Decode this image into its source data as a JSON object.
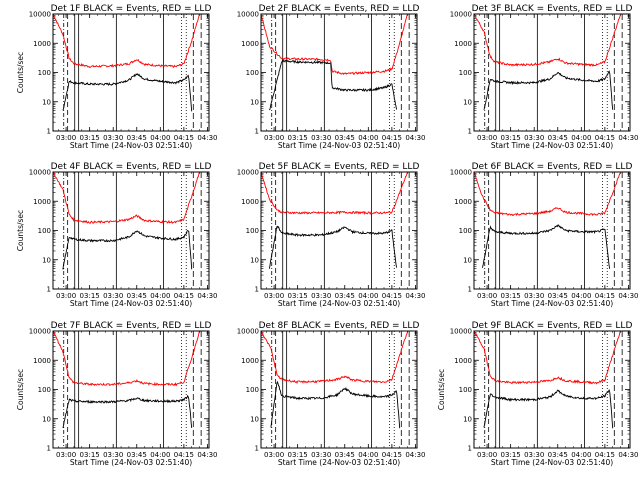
{
  "chart_data": [
    {
      "panel": 1,
      "type": "line",
      "title": "Det 1F BLACK = Events, RED = LLD",
      "xlabel": "Start Time (24-Nov-03 02:51:40)",
      "ylabel": "Counts/sec",
      "yscale": "log",
      "ylim": [
        1,
        10000
      ],
      "x_ticks": [
        "03:00",
        "03:15",
        "03:30",
        "03:45",
        "04:00",
        "04:15",
        "04:30"
      ],
      "y_ticks": [
        "1",
        "10",
        "100",
        "1000",
        "10000"
      ],
      "series": [
        {
          "color": "#ff0000",
          "x": [
            "02:51:40",
            "02:58",
            "03:02",
            "03:05",
            "03:15",
            "03:30",
            "03:40",
            "03:45",
            "03:50",
            "04:00",
            "04:10",
            "04:15",
            "04:20",
            "04:25"
          ],
          "y": [
            10000,
            2000,
            300,
            200,
            160,
            170,
            200,
            280,
            190,
            170,
            160,
            200,
            1200,
            10000
          ]
        },
        {
          "color": "#000000",
          "x": [
            "02:58",
            "03:02",
            "03:05",
            "03:15",
            "03:30",
            "03:40",
            "03:45",
            "03:50",
            "04:00",
            "04:10",
            "04:15",
            "04:18",
            "04:20"
          ],
          "y": [
            5,
            50,
            45,
            40,
            40,
            55,
            90,
            60,
            50,
            45,
            55,
            80,
            5
          ]
        }
      ]
    },
    {
      "panel": 2,
      "type": "line",
      "title": "Det 2F BLACK = Events, RED = LLD",
      "xlabel": "Start Time (24-Nov-03 02:51:40)",
      "ylabel": "",
      "yscale": "log",
      "ylim": [
        1,
        10000
      ],
      "x_ticks": [
        "03:00",
        "03:15",
        "03:30",
        "03:45",
        "04:00",
        "04:15",
        "04:30"
      ],
      "y_ticks": [
        "1",
        "10",
        "100",
        "1000",
        "10000"
      ],
      "series": [
        {
          "color": "#ff0000",
          "x": [
            "02:51:40",
            "02:57",
            "03:05",
            "03:15",
            "03:30",
            "03:36",
            "03:37",
            "03:45",
            "04:00",
            "04:10",
            "04:15",
            "04:20",
            "04:25"
          ],
          "y": [
            10000,
            800,
            300,
            290,
            280,
            270,
            110,
            90,
            100,
            110,
            130,
            1000,
            10000
          ]
        },
        {
          "color": "#000000",
          "x": [
            "02:57",
            "03:05",
            "03:15",
            "03:30",
            "03:36",
            "03:37",
            "03:45",
            "04:00",
            "04:10",
            "04:15",
            "04:18"
          ],
          "y": [
            5,
            250,
            230,
            220,
            210,
            30,
            25,
            25,
            30,
            40,
            5
          ]
        }
      ]
    },
    {
      "panel": 3,
      "type": "line",
      "title": "Det 3F BLACK = Events, RED = LLD",
      "xlabel": "Start Time (24-Nov-03 02:51:40)",
      "ylabel": "",
      "yscale": "log",
      "ylim": [
        1,
        10000
      ],
      "x_ticks": [
        "03:00",
        "03:15",
        "03:30",
        "03:45",
        "04:00",
        "04:15",
        "04:30"
      ],
      "y_ticks": [
        "1",
        "10",
        "100",
        "1000",
        "10000"
      ],
      "series": [
        {
          "color": "#ff0000",
          "x": [
            "02:51:40",
            "02:58",
            "03:02",
            "03:05",
            "03:15",
            "03:30",
            "03:40",
            "03:45",
            "03:50",
            "04:00",
            "04:10",
            "04:15",
            "04:20",
            "04:25"
          ],
          "y": [
            10000,
            2500,
            350,
            230,
            180,
            190,
            230,
            300,
            210,
            190,
            180,
            230,
            1500,
            10000
          ]
        },
        {
          "color": "#000000",
          "x": [
            "02:58",
            "03:02",
            "03:05",
            "03:15",
            "03:30",
            "03:40",
            "03:45",
            "03:50",
            "04:00",
            "04:10",
            "04:15",
            "04:18",
            "04:20"
          ],
          "y": [
            5,
            60,
            50,
            45,
            45,
            60,
            100,
            65,
            55,
            50,
            60,
            120,
            5
          ]
        }
      ]
    },
    {
      "panel": 4,
      "type": "line",
      "title": "Det 4F BLACK = Events, RED = LLD",
      "xlabel": "Start Time (24-Nov-03 02:51:40)",
      "ylabel": "Counts/sec",
      "yscale": "log",
      "ylim": [
        1,
        10000
      ],
      "x_ticks": [
        "03:00",
        "03:15",
        "03:30",
        "03:45",
        "04:00",
        "04:15",
        "04:30"
      ],
      "y_ticks": [
        "1",
        "10",
        "100",
        "1000",
        "10000"
      ],
      "series": [
        {
          "color": "#ff0000",
          "x": [
            "02:51:40",
            "02:58",
            "03:02",
            "03:05",
            "03:15",
            "03:30",
            "03:40",
            "03:45",
            "03:50",
            "04:00",
            "04:10",
            "04:15",
            "04:20",
            "04:25"
          ],
          "y": [
            10000,
            2500,
            350,
            230,
            190,
            200,
            240,
            320,
            220,
            200,
            190,
            240,
            1500,
            10000
          ]
        },
        {
          "color": "#000000",
          "x": [
            "02:58",
            "03:02",
            "03:05",
            "03:15",
            "03:30",
            "03:40",
            "03:45",
            "03:50",
            "04:00",
            "04:10",
            "04:15",
            "04:18",
            "04:20"
          ],
          "y": [
            5,
            60,
            50,
            45,
            45,
            60,
            100,
            65,
            55,
            50,
            60,
            110,
            5
          ]
        }
      ]
    },
    {
      "panel": 5,
      "type": "line",
      "title": "Det 5F BLACK = Events, RED = LLD",
      "xlabel": "Start Time (24-Nov-03 02:51:40)",
      "ylabel": "",
      "yscale": "log",
      "ylim": [
        1,
        10000
      ],
      "x_ticks": [
        "03:00",
        "03:15",
        "03:30",
        "03:45",
        "04:00",
        "04:15",
        "04:30"
      ],
      "y_ticks": [
        "1",
        "10",
        "100",
        "1000",
        "10000"
      ],
      "series": [
        {
          "color": "#ff0000",
          "x": [
            "02:51:40",
            "02:57",
            "03:02",
            "03:05",
            "03:15",
            "03:30",
            "03:45",
            "04:00",
            "04:10",
            "04:15",
            "04:20",
            "04:25"
          ],
          "y": [
            10000,
            1200,
            500,
            420,
            400,
            400,
            420,
            400,
            400,
            420,
            2000,
            10000
          ]
        },
        {
          "color": "#000000",
          "x": [
            "02:57",
            "03:02",
            "03:05",
            "03:15",
            "03:30",
            "03:40",
            "03:45",
            "03:50",
            "04:00",
            "04:10",
            "04:15",
            "04:18"
          ],
          "y": [
            5,
            150,
            80,
            70,
            70,
            90,
            130,
            90,
            80,
            80,
            100,
            5
          ]
        }
      ]
    },
    {
      "panel": 6,
      "type": "line",
      "title": "Det 6F BLACK = Events, RED = LLD",
      "xlabel": "Start Time (24-Nov-03 02:51:40)",
      "ylabel": "",
      "yscale": "log",
      "ylim": [
        1,
        10000
      ],
      "x_ticks": [
        "03:00",
        "03:15",
        "03:30",
        "03:45",
        "04:00",
        "04:15",
        "04:30"
      ],
      "y_ticks": [
        "1",
        "10",
        "100",
        "1000",
        "10000"
      ],
      "series": [
        {
          "color": "#ff0000",
          "x": [
            "02:51:40",
            "02:57",
            "03:02",
            "03:05",
            "03:15",
            "03:30",
            "03:40",
            "03:45",
            "03:50",
            "04:00",
            "04:10",
            "04:15",
            "04:20",
            "04:25"
          ],
          "y": [
            10000,
            1500,
            500,
            400,
            350,
            380,
            450,
            600,
            420,
            380,
            350,
            400,
            2000,
            10000
          ]
        },
        {
          "color": "#000000",
          "x": [
            "02:57",
            "03:02",
            "03:05",
            "03:15",
            "03:30",
            "03:40",
            "03:45",
            "03:50",
            "04:00",
            "04:10",
            "04:15",
            "04:18"
          ],
          "y": [
            5,
            130,
            90,
            80,
            80,
            100,
            150,
            100,
            90,
            90,
            110,
            5
          ]
        }
      ]
    },
    {
      "panel": 7,
      "type": "line",
      "title": "Det 7F BLACK = Events, RED = LLD",
      "xlabel": "Start Time (24-Nov-03 02:51:40)",
      "ylabel": "Counts/sec",
      "yscale": "log",
      "ylim": [
        1,
        10000
      ],
      "x_ticks": [
        "03:00",
        "03:15",
        "03:30",
        "03:45",
        "04:00",
        "04:15",
        "04:30"
      ],
      "y_ticks": [
        "1",
        "10",
        "100",
        "1000",
        "10000"
      ],
      "series": [
        {
          "color": "#ff0000",
          "x": [
            "02:51:40",
            "02:58",
            "03:02",
            "03:05",
            "03:15",
            "03:30",
            "03:40",
            "03:45",
            "03:50",
            "04:00",
            "04:10",
            "04:15",
            "04:20",
            "04:25"
          ],
          "y": [
            10000,
            2000,
            250,
            170,
            150,
            150,
            170,
            200,
            160,
            150,
            150,
            180,
            1200,
            10000
          ]
        },
        {
          "color": "#000000",
          "x": [
            "02:58",
            "03:02",
            "03:05",
            "03:15",
            "03:30",
            "03:40",
            "03:45",
            "03:50",
            "04:00",
            "04:10",
            "04:15",
            "04:18",
            "04:20"
          ],
          "y": [
            5,
            45,
            40,
            38,
            38,
            42,
            50,
            42,
            40,
            40,
            45,
            60,
            5
          ]
        }
      ]
    },
    {
      "panel": 8,
      "type": "line",
      "title": "Det 8F BLACK = Events, RED = LLD",
      "xlabel": "Start Time (24-Nov-03 02:51:40)",
      "ylabel": "",
      "yscale": "log",
      "ylim": [
        1,
        10000
      ],
      "x_ticks": [
        "03:00",
        "03:15",
        "03:30",
        "03:45",
        "04:00",
        "04:15",
        "04:30"
      ],
      "y_ticks": [
        "1",
        "10",
        "100",
        "1000",
        "10000"
      ],
      "series": [
        {
          "color": "#ff0000",
          "x": [
            "02:51:40",
            "02:58",
            "03:02",
            "03:05",
            "03:15",
            "03:30",
            "03:40",
            "03:45",
            "03:50",
            "04:00",
            "04:10",
            "04:15",
            "04:20",
            "04:25"
          ],
          "y": [
            10000,
            2500,
            300,
            220,
            180,
            190,
            220,
            280,
            210,
            190,
            180,
            220,
            1500,
            10000
          ]
        },
        {
          "color": "#000000",
          "x": [
            "02:58",
            "03:02",
            "03:05",
            "03:15",
            "03:30",
            "03:40",
            "03:45",
            "03:50",
            "04:00",
            "04:10",
            "04:15",
            "04:18",
            "04:20"
          ],
          "y": [
            5,
            200,
            60,
            50,
            50,
            65,
            110,
            70,
            60,
            55,
            65,
            90,
            5
          ]
        }
      ]
    },
    {
      "panel": 9,
      "type": "line",
      "title": "Det 9F BLACK = Events, RED = LLD",
      "xlabel": "Start Time (24-Nov-03 02:51:40)",
      "ylabel": "Counts/sec",
      "yscale": "log",
      "ylim": [
        1,
        10000
      ],
      "x_ticks": [
        "03:00",
        "03:15",
        "03:30",
        "03:45",
        "04:00",
        "04:15",
        "04:30"
      ],
      "y_ticks": [
        "1",
        "10",
        "100",
        "1000",
        "10000"
      ],
      "series": [
        {
          "color": "#ff0000",
          "x": [
            "02:51:40",
            "02:58",
            "03:02",
            "03:05",
            "03:15",
            "03:30",
            "03:40",
            "03:45",
            "03:50",
            "04:00",
            "04:10",
            "04:15",
            "04:20",
            "04:25"
          ],
          "y": [
            10000,
            2500,
            300,
            200,
            170,
            180,
            200,
            260,
            200,
            180,
            170,
            210,
            1500,
            10000
          ]
        },
        {
          "color": "#000000",
          "x": [
            "02:58",
            "03:02",
            "03:05",
            "03:15",
            "03:30",
            "03:40",
            "03:45",
            "03:50",
            "04:00",
            "04:10",
            "04:15",
            "04:18",
            "04:20"
          ],
          "y": [
            5,
            70,
            55,
            45,
            45,
            55,
            90,
            60,
            50,
            50,
            60,
            100,
            5
          ]
        }
      ]
    }
  ]
}
